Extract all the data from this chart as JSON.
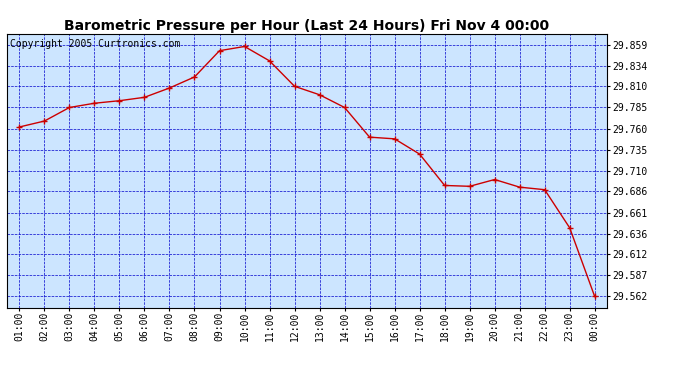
{
  "title": "Barometric Pressure per Hour (Last 24 Hours) Fri Nov 4 00:00",
  "copyright": "Copyright 2005 Curtronics.com",
  "x_labels": [
    "01:00",
    "02:00",
    "03:00",
    "04:00",
    "05:00",
    "06:00",
    "07:00",
    "08:00",
    "09:00",
    "10:00",
    "11:00",
    "12:00",
    "13:00",
    "14:00",
    "15:00",
    "16:00",
    "17:00",
    "18:00",
    "19:00",
    "20:00",
    "21:00",
    "22:00",
    "23:00",
    "00:00"
  ],
  "y_data": [
    29.762,
    29.769,
    29.785,
    29.79,
    29.793,
    29.797,
    29.808,
    29.821,
    29.852,
    29.857,
    29.84,
    29.81,
    29.8,
    29.785,
    29.75,
    29.748,
    29.73,
    29.693,
    29.692,
    29.7,
    29.691,
    29.688,
    29.643,
    29.562
  ],
  "y_ticks": [
    29.562,
    29.587,
    29.612,
    29.636,
    29.661,
    29.686,
    29.71,
    29.735,
    29.76,
    29.785,
    29.81,
    29.834,
    29.859
  ],
  "y_min": 29.549,
  "y_max": 29.872,
  "line_color": "#cc0000",
  "marker_color": "#cc0000",
  "fig_bg_color": "#ffffff",
  "plot_bg_color": "#cce5ff",
  "grid_color": "#0000cc",
  "border_color": "#000000",
  "title_fontsize": 10,
  "copyright_fontsize": 7,
  "tick_fontsize": 7,
  "title_color": "#000000"
}
